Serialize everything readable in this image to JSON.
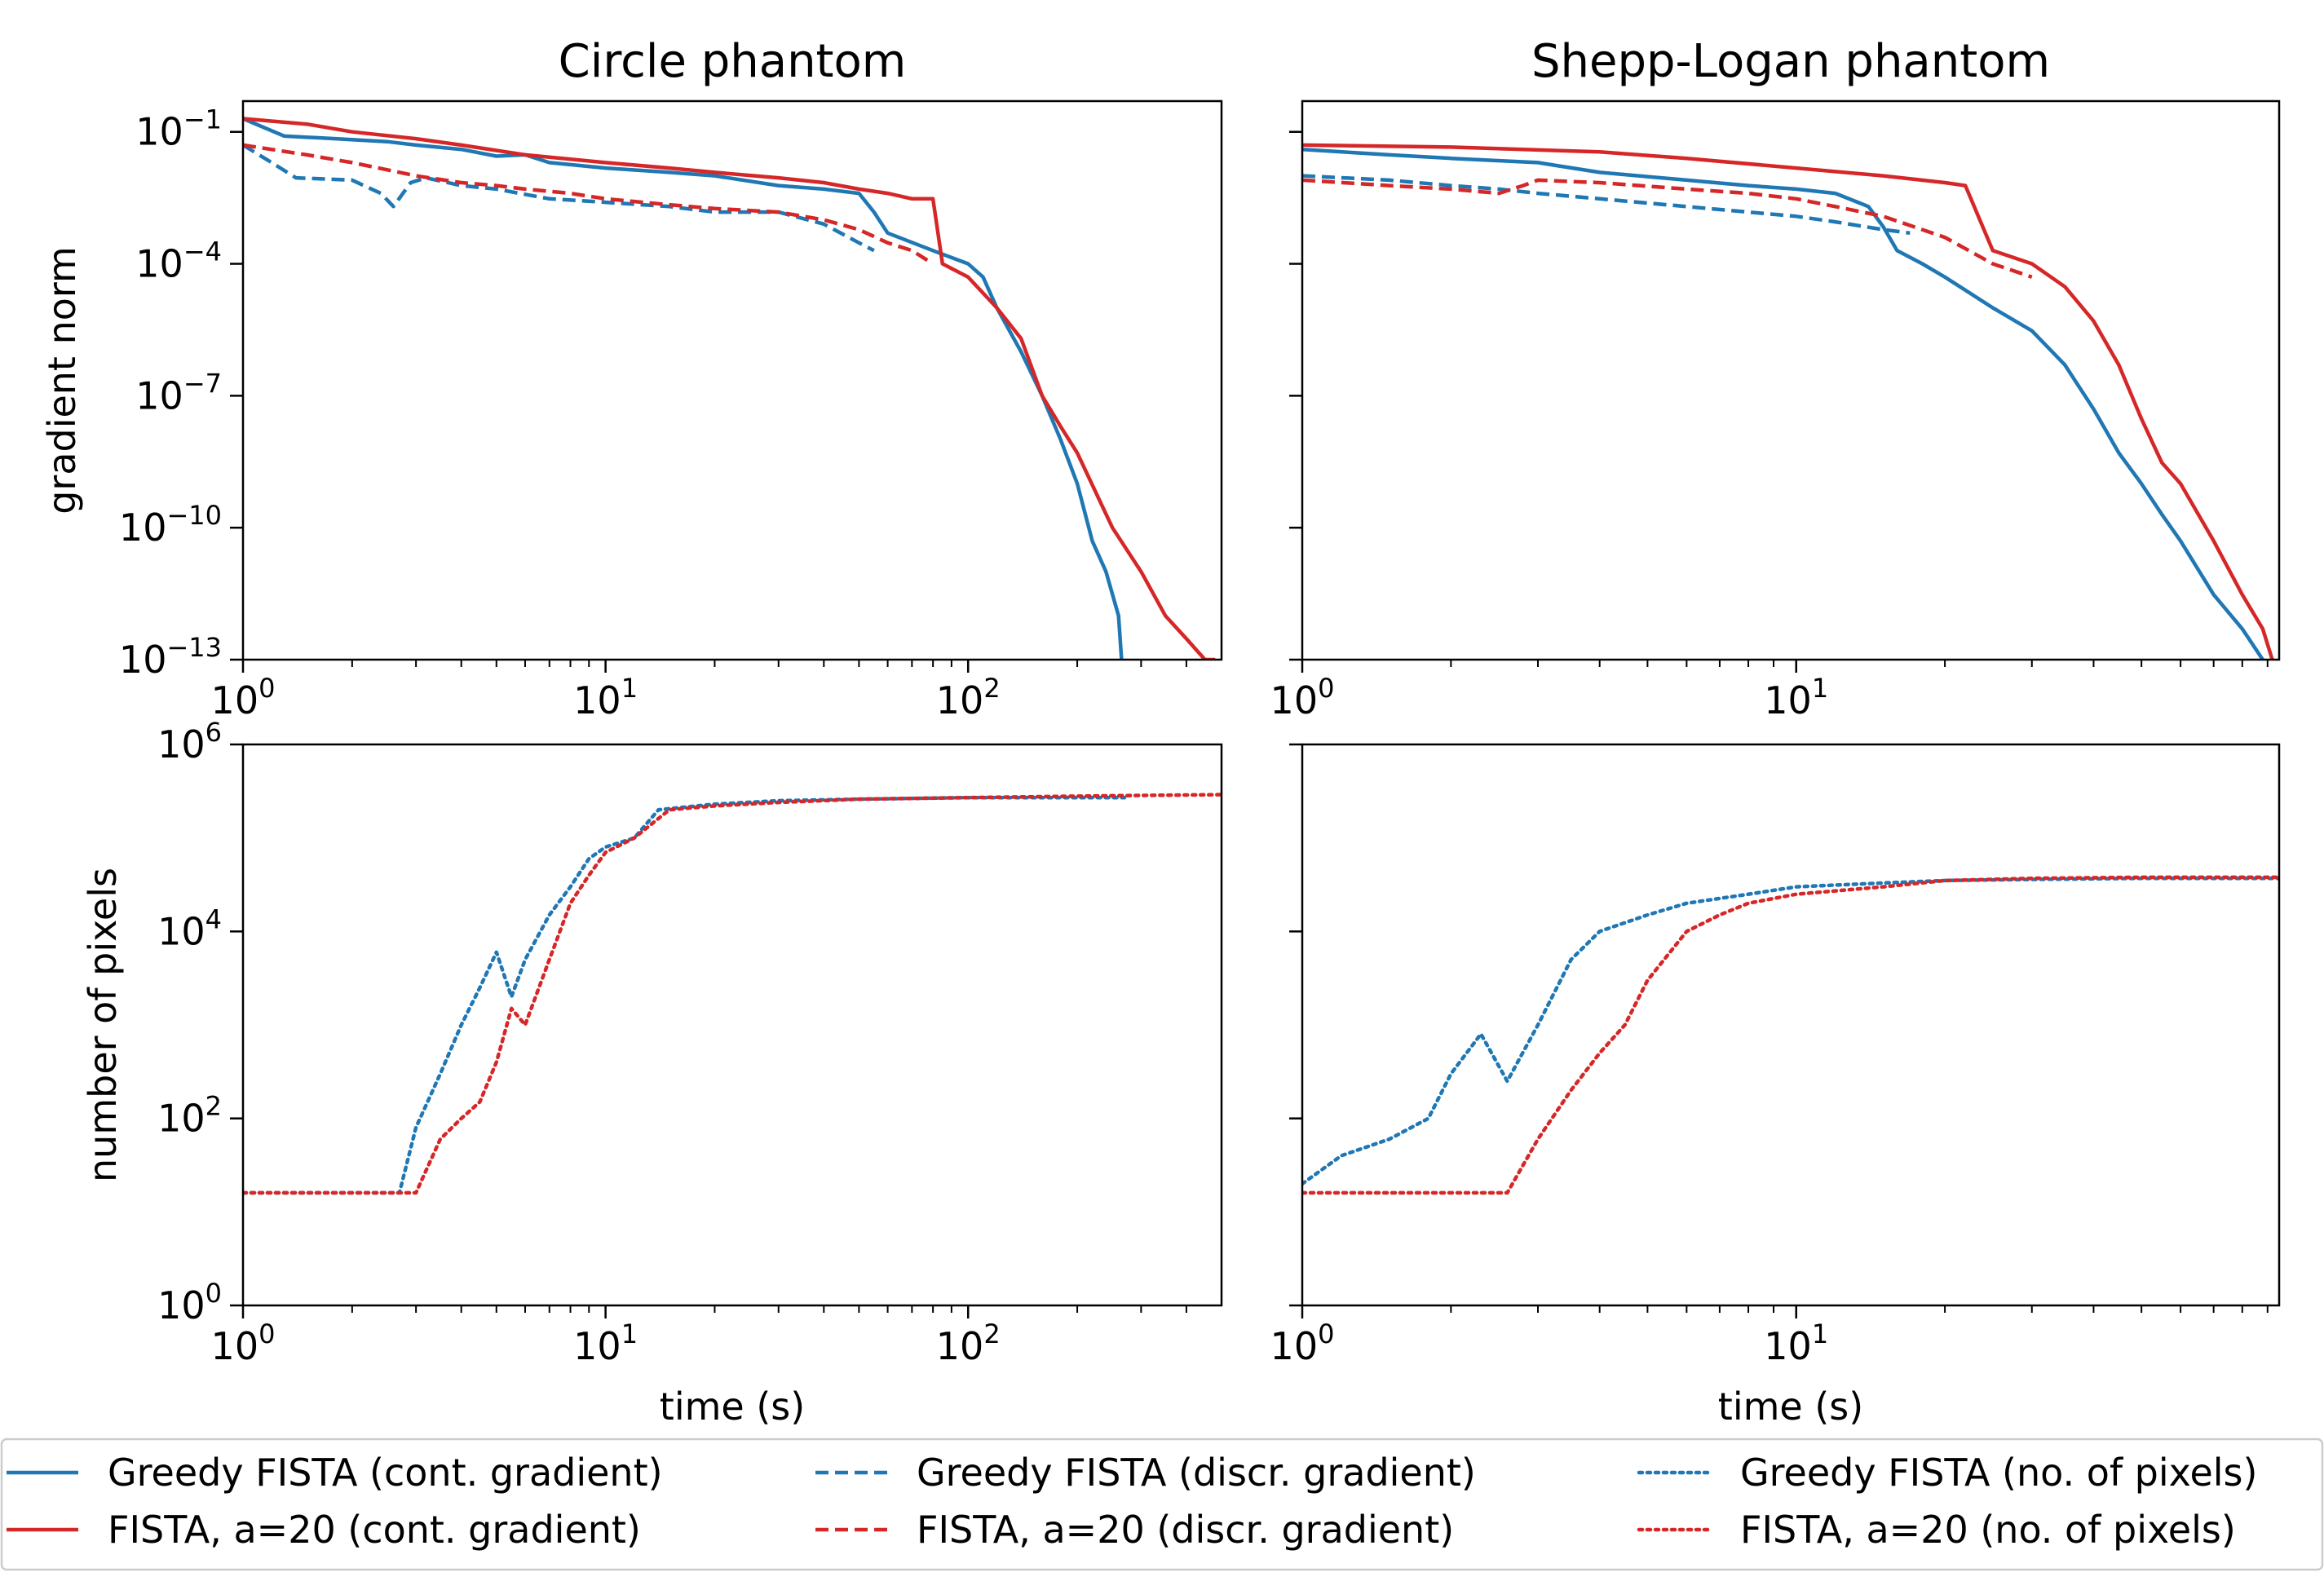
{
  "chart_data": [
    {
      "type": "line",
      "title": "Circle phantom",
      "xlabel": "",
      "ylabel": "gradient norm",
      "xscale": "log",
      "yscale": "log",
      "xlim": [
        1,
        500
      ],
      "ylim": [
        1e-13,
        0.5
      ],
      "xticks": [
        {
          "base": "10",
          "exp": "0",
          "v": 1
        },
        {
          "base": "10",
          "exp": "1",
          "v": 10
        },
        {
          "base": "10",
          "exp": "2",
          "v": 100
        }
      ],
      "yticks": [
        {
          "base": "10",
          "exp": "−1",
          "v": 0.1
        },
        {
          "base": "10",
          "exp": "−4",
          "v": 0.0001
        },
        {
          "base": "10",
          "exp": "−7",
          "v": 1e-07
        },
        {
          "base": "10",
          "exp": "−10",
          "v": 1e-10
        },
        {
          "base": "10",
          "exp": "−13",
          "v": 1e-13
        }
      ],
      "series": [
        {
          "name": "Greedy FISTA (cont. gradient)",
          "color": "#1f77b4",
          "style": "solid",
          "x": [
            1,
            1.3,
            1.8,
            2.5,
            3,
            4,
            5,
            6,
            7,
            10,
            15,
            20,
            30,
            40,
            50,
            55,
            60,
            80,
            100,
            110,
            120,
            140,
            160,
            180,
            200,
            220,
            240,
            260,
            265
          ],
          "y": [
            0.2,
            0.08,
            0.07,
            0.06,
            0.05,
            0.04,
            0.028,
            0.03,
            0.02,
            0.015,
            0.012,
            0.01,
            0.006,
            0.005,
            0.004,
            0.0015,
            0.0005,
            0.0002,
            0.0001,
            5e-05,
            1e-05,
            1e-06,
            1e-07,
            1e-08,
            1e-09,
            5e-11,
            1e-11,
            1e-12,
            1e-13
          ]
        },
        {
          "name": "FISTA, a=20 (cont. gradient)",
          "color": "#d62728",
          "style": "solid",
          "x": [
            1,
            1.5,
            2,
            3,
            4,
            6,
            10,
            15,
            20,
            30,
            40,
            50,
            60,
            70,
            80,
            85,
            100,
            120,
            140,
            160,
            180,
            200,
            250,
            300,
            350,
            400,
            450,
            480
          ],
          "y": [
            0.2,
            0.15,
            0.1,
            0.07,
            0.05,
            0.03,
            0.02,
            0.015,
            0.012,
            0.009,
            0.007,
            0.005,
            0.004,
            0.003,
            0.003,
            0.0001,
            5e-05,
            1e-05,
            2e-06,
            1e-07,
            2e-08,
            5e-09,
            1e-10,
            1e-11,
            1e-12,
            3e-13,
            1e-13,
            1e-13
          ]
        },
        {
          "name": "Greedy FISTA (discr. gradient)",
          "color": "#1f77b4",
          "style": "dashed",
          "x": [
            1,
            1.2,
            1.4,
            2,
            2.4,
            2.6,
            2.9,
            3.2,
            4,
            5,
            7,
            10,
            15,
            20,
            30,
            40,
            50,
            55
          ],
          "y": [
            0.05,
            0.02,
            0.009,
            0.008,
            0.004,
            0.002,
            0.007,
            0.009,
            0.006,
            0.005,
            0.003,
            0.0025,
            0.002,
            0.0015,
            0.0015,
            0.0008,
            0.0003,
            0.0002
          ]
        },
        {
          "name": "FISTA, a=20 (discr. gradient)",
          "color": "#d62728",
          "style": "dashed",
          "x": [
            1,
            1.5,
            2,
            3,
            4,
            5,
            6,
            8,
            10,
            15,
            20,
            30,
            40,
            50,
            60,
            70,
            80
          ],
          "y": [
            0.05,
            0.03,
            0.02,
            0.01,
            0.007,
            0.006,
            0.005,
            0.004,
            0.003,
            0.0022,
            0.0018,
            0.0015,
            0.001,
            0.0006,
            0.0003,
            0.0002,
            0.0001
          ]
        }
      ]
    },
    {
      "type": "line",
      "title": "Shepp-Logan phantom",
      "xlabel": "",
      "ylabel": "",
      "xscale": "log",
      "yscale": "log",
      "xlim": [
        1,
        95
      ],
      "ylim": [
        1e-13,
        0.5
      ],
      "xticks": [
        {
          "base": "10",
          "exp": "0",
          "v": 1
        },
        {
          "base": "10",
          "exp": "1",
          "v": 10
        }
      ],
      "yticks": [
        {
          "v": 0.1
        },
        {
          "v": 0.0001
        },
        {
          "v": 1e-07
        },
        {
          "v": 1e-10
        },
        {
          "v": 1e-13
        }
      ],
      "series": [
        {
          "name": "Greedy FISTA (cont. gradient)",
          "color": "#1f77b4",
          "style": "solid",
          "x": [
            1,
            1.5,
            2,
            3,
            4,
            6,
            8,
            10,
            12,
            14,
            15,
            16,
            18,
            20,
            25,
            30,
            35,
            40,
            45,
            50,
            55,
            60,
            70,
            80,
            88
          ],
          "y": [
            0.04,
            0.03,
            0.025,
            0.02,
            0.012,
            0.008,
            0.006,
            0.005,
            0.004,
            0.002,
            0.0007,
            0.0002,
            0.0001,
            5e-05,
            1e-05,
            3e-06,
            5e-07,
            5e-08,
            5e-09,
            1e-09,
            2e-10,
            5e-11,
            3e-12,
            5e-13,
            1e-13
          ]
        },
        {
          "name": "FISTA, a=20 (cont. gradient)",
          "color": "#d62728",
          "style": "solid",
          "x": [
            1,
            2,
            4,
            6,
            10,
            15,
            20,
            22,
            25,
            30,
            35,
            40,
            45,
            50,
            55,
            60,
            70,
            80,
            88,
            92
          ],
          "y": [
            0.05,
            0.045,
            0.035,
            0.025,
            0.015,
            0.01,
            0.007,
            0.006,
            0.0002,
            0.0001,
            3e-05,
            5e-06,
            5e-07,
            3e-08,
            3e-09,
            1e-09,
            5e-11,
            3e-12,
            5e-13,
            1e-13
          ]
        },
        {
          "name": "Greedy FISTA (discr. gradient)",
          "color": "#1f77b4",
          "style": "dashed",
          "x": [
            1,
            1.5,
            2,
            2.5,
            3,
            4,
            6,
            8,
            10,
            12,
            15,
            17
          ],
          "y": [
            0.01,
            0.008,
            0.006,
            0.005,
            0.004,
            0.003,
            0.002,
            0.0015,
            0.0012,
            0.0009,
            0.0006,
            0.0005
          ]
        },
        {
          "name": "FISTA, a=20 (discr. gradient)",
          "color": "#d62728",
          "style": "dashed",
          "x": [
            1,
            1.5,
            2,
            2.5,
            2.8,
            3,
            4,
            6,
            8,
            10,
            12,
            15,
            18,
            20,
            25,
            30
          ],
          "y": [
            0.008,
            0.006,
            0.005,
            0.004,
            0.006,
            0.008,
            0.007,
            0.005,
            0.004,
            0.003,
            0.002,
            0.0012,
            0.0006,
            0.0004,
            0.0001,
            5e-05
          ]
        }
      ]
    },
    {
      "type": "line",
      "title": "",
      "xlabel": "time (s)",
      "ylabel": "number of pixels",
      "xscale": "log",
      "yscale": "log",
      "xlim": [
        1,
        500
      ],
      "ylim": [
        1,
        1000000
      ],
      "xticks": [
        {
          "base": "10",
          "exp": "0",
          "v": 1
        },
        {
          "base": "10",
          "exp": "1",
          "v": 10
        },
        {
          "base": "10",
          "exp": "2",
          "v": 100
        }
      ],
      "yticks": [
        {
          "base": "10",
          "exp": "6",
          "v": 1000000
        },
        {
          "base": "10",
          "exp": "4",
          "v": 10000
        },
        {
          "base": "10",
          "exp": "2",
          "v": 100
        },
        {
          "base": "10",
          "exp": "0",
          "v": 1
        }
      ],
      "series": [
        {
          "name": "Greedy FISTA (no. of pixels)",
          "color": "#1f77b4",
          "style": "dotted",
          "x": [
            1,
            2.7,
            3,
            3.5,
            4,
            4.5,
            5,
            5.5,
            6,
            7,
            8,
            9,
            10,
            12,
            14,
            20,
            30,
            50,
            100,
            200,
            270
          ],
          "y": [
            16,
            16,
            80,
            300,
            1000,
            2500,
            6000,
            2000,
            5000,
            15000,
            30000,
            60000,
            80000,
            100000,
            200000,
            230000,
            250000,
            260000,
            270000,
            270000,
            270000
          ]
        },
        {
          "name": "FISTA, a=20 (no. of pixels)",
          "color": "#d62728",
          "style": "dotted",
          "x": [
            1,
            3,
            3.5,
            4,
            4.5,
            5,
            5.5,
            6,
            7,
            8,
            9,
            10,
            12,
            15,
            20,
            30,
            50,
            100,
            200,
            300,
            500
          ],
          "y": [
            16,
            16,
            60,
            100,
            150,
            400,
            1500,
            1000,
            5000,
            20000,
            40000,
            70000,
            100000,
            200000,
            220000,
            240000,
            260000,
            270000,
            280000,
            285000,
            290000
          ]
        }
      ]
    },
    {
      "type": "line",
      "title": "",
      "xlabel": "time (s)",
      "ylabel": "",
      "xscale": "log",
      "yscale": "log",
      "xlim": [
        1,
        95
      ],
      "ylim": [
        1,
        1000000
      ],
      "xticks": [
        {
          "base": "10",
          "exp": "0",
          "v": 1
        },
        {
          "base": "10",
          "exp": "1",
          "v": 10
        }
      ],
      "yticks": [
        {
          "v": 1000000
        },
        {
          "v": 10000
        },
        {
          "v": 100
        },
        {
          "v": 1
        }
      ],
      "series": [
        {
          "name": "Greedy FISTA (no. of pixels)",
          "color": "#1f77b4",
          "style": "dotted",
          "x": [
            1,
            1.2,
            1.5,
            1.8,
            2,
            2.3,
            2.6,
            3,
            3.5,
            4,
            5,
            6,
            8,
            10,
            15,
            20,
            30,
            50,
            95
          ],
          "y": [
            20,
            40,
            60,
            100,
            300,
            800,
            250,
            1000,
            5000,
            10000,
            15000,
            20000,
            25000,
            30000,
            33000,
            35000,
            36000,
            37000,
            37000
          ]
        },
        {
          "name": "FISTA, a=20 (no. of pixels)",
          "color": "#d62728",
          "style": "dotted",
          "x": [
            1,
            2.6,
            3,
            3.5,
            4,
            4.5,
            5,
            6,
            7,
            8,
            10,
            15,
            20,
            30,
            50,
            95
          ],
          "y": [
            16,
            16,
            60,
            200,
            500,
            1000,
            3000,
            10000,
            15000,
            20000,
            25000,
            30000,
            35000,
            37000,
            38000,
            38000
          ]
        }
      ]
    }
  ],
  "legend": {
    "placement": "bottom",
    "entries": [
      {
        "label": "Greedy FISTA (cont. gradient)",
        "color": "#1f77b4",
        "style": "solid"
      },
      {
        "label": "FISTA, a=20 (cont. gradient)",
        "color": "#d62728",
        "style": "solid"
      },
      {
        "label": "Greedy FISTA (discr. gradient)",
        "color": "#1f77b4",
        "style": "dashed"
      },
      {
        "label": "FISTA, a=20 (discr. gradient)",
        "color": "#d62728",
        "style": "dashed"
      },
      {
        "label": "Greedy FISTA (no. of pixels)",
        "color": "#1f77b4",
        "style": "dotted"
      },
      {
        "label": "FISTA, a=20 (no. of pixels)",
        "color": "#d62728",
        "style": "dotted"
      }
    ]
  }
}
